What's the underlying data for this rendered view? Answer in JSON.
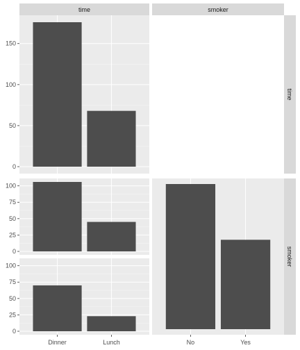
{
  "colors": {
    "panel_background": "#ebebeb",
    "grid_major": "#ffffff",
    "grid_minor": "#f5f5f5",
    "strip_background": "#d9d9d9",
    "bar_fill": "#4d4d4d",
    "text": "#1a1a1a",
    "tick_text": "#4d4d4d"
  },
  "chart_data": {
    "type": "bar",
    "layout": "facet-matrix",
    "variables": [
      "time",
      "smoker"
    ],
    "column_strips": [
      "time",
      "smoker"
    ],
    "row_strips": [
      "time",
      "smoker"
    ],
    "panels": [
      {
        "row": "time",
        "col": "time",
        "categories": [
          "Dinner",
          "Lunch"
        ],
        "values": [
          176,
          68
        ],
        "y_ticks": [
          0,
          50,
          100,
          150
        ],
        "ylim": [
          0,
          176
        ]
      },
      {
        "row": "smoker",
        "col": "time",
        "categories": [
          "Dinner",
          "Lunch"
        ],
        "values": [
          106,
          45
        ],
        "y_ticks": [
          0,
          25,
          50,
          75,
          100
        ],
        "ylim": [
          0,
          106
        ]
      },
      {
        "row": "smoker",
        "col": "time",
        "categories": [
          "Dinner",
          "Lunch"
        ],
        "values": [
          70,
          23
        ],
        "y_ticks": [
          0,
          25,
          50,
          75,
          100
        ],
        "ylim": [
          0,
          106
        ]
      },
      {
        "row": "smoker",
        "col": "smoker",
        "categories": [
          "No",
          "Yes"
        ],
        "values": [
          151,
          93
        ],
        "y_ticks": [],
        "ylim": [
          0,
          151
        ]
      }
    ],
    "x_tick_labels": {
      "time": [
        "Dinner",
        "Lunch"
      ],
      "smoker": [
        "No",
        "Yes"
      ]
    },
    "grid": true,
    "legend": "none"
  }
}
